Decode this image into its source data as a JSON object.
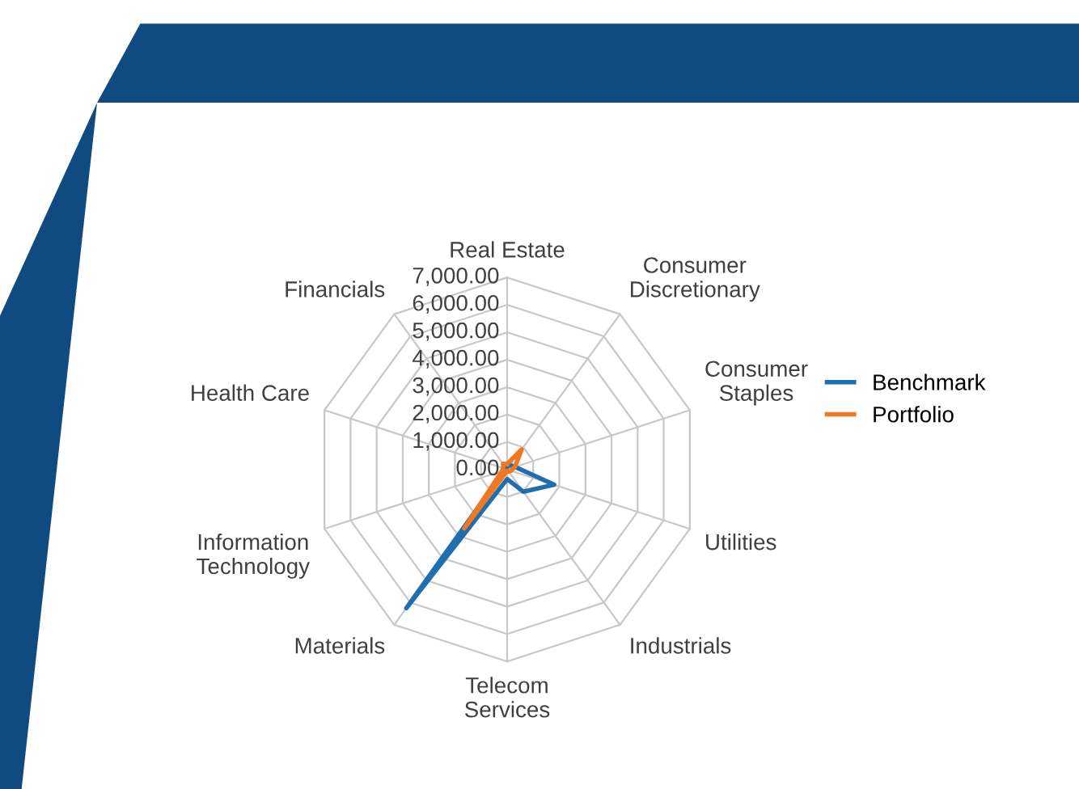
{
  "chart_data": {
    "type": "radar",
    "categories": [
      "Real Estate",
      "Consumer\nDiscretionary",
      "Consumer\nStaples",
      "Utilities",
      "Industrials",
      "Telecom\nServices",
      "Materials",
      "Information\nTechnology",
      "Health Care",
      "Financials"
    ],
    "series": [
      {
        "name": "Benchmark",
        "color": "#1f6fb0",
        "values": [
          100,
          200,
          300,
          1800,
          1000,
          350,
          6250,
          100,
          100,
          150
        ]
      },
      {
        "name": "Portfolio",
        "color": "#f07822",
        "values": [
          200,
          900,
          300,
          150,
          100,
          50,
          2650,
          200,
          150,
          250
        ]
      }
    ],
    "ylim": [
      0,
      7000
    ],
    "yticks": [
      {
        "value": 0,
        "label": "0.00"
      },
      {
        "value": 1000,
        "label": "1,000.00"
      },
      {
        "value": 2000,
        "label": "2,000.00"
      },
      {
        "value": 3000,
        "label": "3,000.00"
      },
      {
        "value": 4000,
        "label": "4,000.00"
      },
      {
        "value": 5000,
        "label": "5,000.00"
      },
      {
        "value": 6000,
        "label": "6,000.00"
      },
      {
        "value": 7000,
        "label": "7,000.00"
      }
    ],
    "grid": true,
    "legend": "right"
  }
}
